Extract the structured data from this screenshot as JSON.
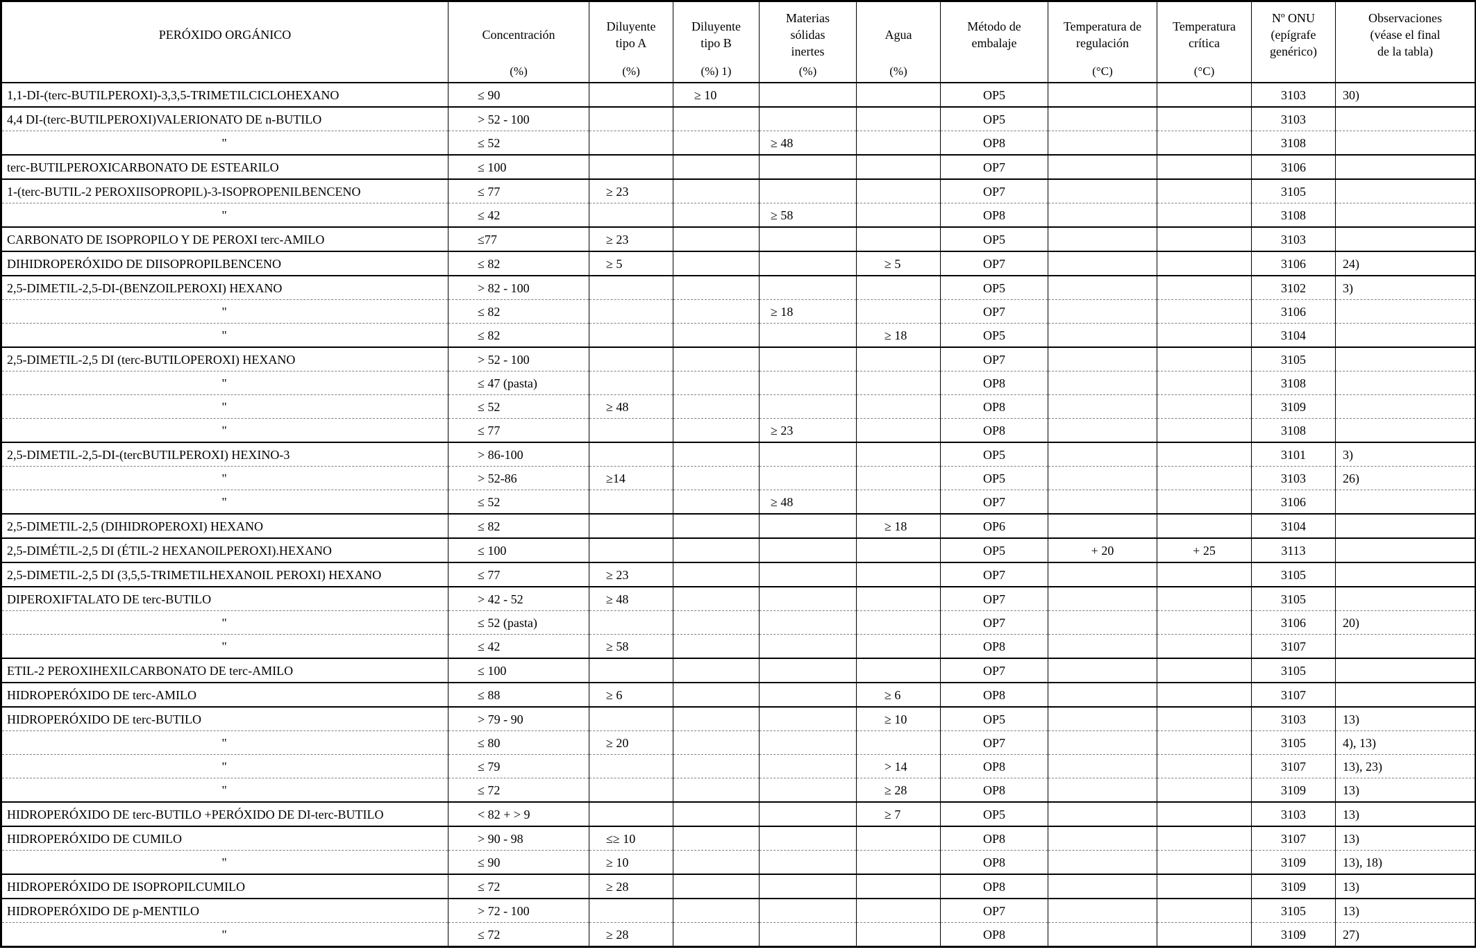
{
  "table": {
    "columns": [
      {
        "key": "name",
        "label": "PERÓXIDO ORGÁNICO",
        "unit": ""
      },
      {
        "key": "conc",
        "label": "Concentración",
        "unit": "(%)"
      },
      {
        "key": "dilA",
        "label": "Diluyente\ntipo A",
        "unit": "(%)"
      },
      {
        "key": "dilB",
        "label": "Diluyente\ntipo B",
        "unit": "(%) 1)"
      },
      {
        "key": "solids",
        "label": "Materias\nsólidas\ninertes",
        "unit": "(%)"
      },
      {
        "key": "agua",
        "label": "Agua",
        "unit": "(%)"
      },
      {
        "key": "metodo",
        "label": "Método de\nembalaje",
        "unit": ""
      },
      {
        "key": "treg",
        "label": "Temperatura de\nregulación",
        "unit": "(°C)"
      },
      {
        "key": "tcrit",
        "label": "Temperatura\ncrítica",
        "unit": "(°C)"
      },
      {
        "key": "onu",
        "label": "Nº ONU\n(epígrafe\ngenérico)",
        "unit": ""
      },
      {
        "key": "obs",
        "label": "Observaciones\n(véase el final\nde la tabla)",
        "unit": ""
      }
    ],
    "rows": [
      {
        "name": "1,1-DI-(terc-BUTILPEROXI)-3,3,5-TRIMETILCICLOHEXANO",
        "conc": "≤ 90",
        "dilA": "",
        "dilB": "≥ 10",
        "solids": "",
        "agua": "",
        "metodo": "OP5",
        "treg": "",
        "tcrit": "",
        "onu": "3103",
        "obs": "30)"
      },
      {
        "name": "4,4 DI-(terc-BUTILPEROXI)VALERIONATO DE n-BUTILO",
        "conc": "> 52 - 100",
        "dilA": "",
        "dilB": "",
        "solids": "",
        "agua": "",
        "metodo": "OP5",
        "treg": "",
        "tcrit": "",
        "onu": "3103",
        "obs": ""
      },
      {
        "name": "\"",
        "conc": "≤ 52",
        "dilA": "",
        "dilB": "",
        "solids": "≥ 48",
        "agua": "",
        "metodo": "OP8",
        "treg": "",
        "tcrit": "",
        "onu": "3108",
        "obs": ""
      },
      {
        "name": "terc-BUTILPEROXICARBONATO DE ESTEARILO",
        "conc": "≤ 100",
        "dilA": "",
        "dilB": "",
        "solids": "",
        "agua": "",
        "metodo": "OP7",
        "treg": "",
        "tcrit": "",
        "onu": "3106",
        "obs": ""
      },
      {
        "name": "1-(terc-BUTIL-2 PEROXIISOPROPIL)-3-ISOPROPENILBENCENO",
        "conc": "≤ 77",
        "dilA": "≥ 23",
        "dilB": "",
        "solids": "",
        "agua": "",
        "metodo": "OP7",
        "treg": "",
        "tcrit": "",
        "onu": "3105",
        "obs": ""
      },
      {
        "name": "\"",
        "conc": "≤ 42",
        "dilA": "",
        "dilB": "",
        "solids": "≥ 58",
        "agua": "",
        "metodo": "OP8",
        "treg": "",
        "tcrit": "",
        "onu": "3108",
        "obs": ""
      },
      {
        "name": "CARBONATO DE ISOPROPILO Y DE PEROXI terc-AMILO",
        "conc": "≤77",
        "dilA": "≥ 23",
        "dilB": "",
        "solids": "",
        "agua": "",
        "metodo": "OP5",
        "treg": "",
        "tcrit": "",
        "onu": "3103",
        "obs": ""
      },
      {
        "name": "DIHIDROPERÓXIDO DE DIISOPROPILBENCENO",
        "conc": "≤ 82",
        "dilA": "≥ 5",
        "dilB": "",
        "solids": "",
        "agua": "≥ 5",
        "metodo": "OP7",
        "treg": "",
        "tcrit": "",
        "onu": "3106",
        "obs": "24)"
      },
      {
        "name": "2,5-DIMETIL-2,5-DI-(BENZOILPEROXI) HEXANO",
        "conc": "> 82 - 100",
        "dilA": "",
        "dilB": "",
        "solids": "",
        "agua": "",
        "metodo": "OP5",
        "treg": "",
        "tcrit": "",
        "onu": "3102",
        "obs": "3)"
      },
      {
        "name": "\"",
        "conc": "≤ 82",
        "dilA": "",
        "dilB": "",
        "solids": "≥ 18",
        "agua": "",
        "metodo": "OP7",
        "treg": "",
        "tcrit": "",
        "onu": "3106",
        "obs": ""
      },
      {
        "name": "\"",
        "conc": "≤ 82",
        "dilA": "",
        "dilB": "",
        "solids": "",
        "agua": "≥ 18",
        "metodo": "OP5",
        "treg": "",
        "tcrit": "",
        "onu": "3104",
        "obs": ""
      },
      {
        "name": "2,5-DIMETIL-2,5 DI (terc-BUTILOPEROXI) HEXANO",
        "conc": "> 52 - 100",
        "dilA": "",
        "dilB": "",
        "solids": "",
        "agua": "",
        "metodo": "OP7",
        "treg": "",
        "tcrit": "",
        "onu": "3105",
        "obs": ""
      },
      {
        "name": "\"",
        "conc": "≤ 47 (pasta)",
        "dilA": "",
        "dilB": "",
        "solids": "",
        "agua": "",
        "metodo": "OP8",
        "treg": "",
        "tcrit": "",
        "onu": "3108",
        "obs": ""
      },
      {
        "name": "\"",
        "conc": "≤ 52",
        "dilA": "≥ 48",
        "dilB": "",
        "solids": "",
        "agua": "",
        "metodo": "OP8",
        "treg": "",
        "tcrit": "",
        "onu": "3109",
        "obs": ""
      },
      {
        "name": "\"",
        "conc": "≤ 77",
        "dilA": "",
        "dilB": "",
        "solids": "≥ 23",
        "agua": "",
        "metodo": "OP8",
        "treg": "",
        "tcrit": "",
        "onu": "3108",
        "obs": ""
      },
      {
        "name": "2,5-DIMETIL-2,5-DI-(tercBUTILPEROXI) HEXINO-3",
        "conc": "> 86-100",
        "dilA": "",
        "dilB": "",
        "solids": "",
        "agua": "",
        "metodo": "OP5",
        "treg": "",
        "tcrit": "",
        "onu": "3101",
        "obs": "3)"
      },
      {
        "name": "\"",
        "conc": "> 52-86",
        "dilA": "≥14",
        "dilB": "",
        "solids": "",
        "agua": "",
        "metodo": "OP5",
        "treg": "",
        "tcrit": "",
        "onu": "3103",
        "obs": "26)"
      },
      {
        "name": "\"",
        "conc": "≤ 52",
        "dilA": "",
        "dilB": "",
        "solids": "≥ 48",
        "agua": "",
        "metodo": "OP7",
        "treg": "",
        "tcrit": "",
        "onu": "3106",
        "obs": ""
      },
      {
        "name": "2,5-DIMETIL-2,5 (DIHIDROPEROXI) HEXANO",
        "conc": "≤ 82",
        "dilA": "",
        "dilB": "",
        "solids": "",
        "agua": "≥ 18",
        "metodo": "OP6",
        "treg": "",
        "tcrit": "",
        "onu": "3104",
        "obs": ""
      },
      {
        "name": "2,5-DIMÉTIL-2,5 DI (ÉTIL-2 HEXANOILPEROXI).HEXANO",
        "conc": "≤ 100",
        "dilA": "",
        "dilB": "",
        "solids": "",
        "agua": "",
        "metodo": "OP5",
        "treg": "+ 20",
        "tcrit": "+ 25",
        "onu": "3113",
        "obs": ""
      },
      {
        "name": "2,5-DIMETIL-2,5 DI (3,5,5-TRIMETILHEXANOIL PEROXI) HEXANO",
        "conc": "≤ 77",
        "dilA": "≥ 23",
        "dilB": "",
        "solids": "",
        "agua": "",
        "metodo": "OP7",
        "treg": "",
        "tcrit": "",
        "onu": "3105",
        "obs": ""
      },
      {
        "name": "DIPEROXIFTALATO DE terc-BUTILO",
        "conc": "> 42 - 52",
        "dilA": "≥ 48",
        "dilB": "",
        "solids": "",
        "agua": "",
        "metodo": "OP7",
        "treg": "",
        "tcrit": "",
        "onu": "3105",
        "obs": ""
      },
      {
        "name": "\"",
        "conc": "≤ 52 (pasta)",
        "dilA": "",
        "dilB": "",
        "solids": "",
        "agua": "",
        "metodo": "OP7",
        "treg": "",
        "tcrit": "",
        "onu": "3106",
        "obs": "20)"
      },
      {
        "name": "\"",
        "conc": "≤ 42",
        "dilA": "≥ 58",
        "dilB": "",
        "solids": "",
        "agua": "",
        "metodo": "OP8",
        "treg": "",
        "tcrit": "",
        "onu": "3107",
        "obs": ""
      },
      {
        "name": "ETIL-2 PEROXIHEXILCARBONATO DE terc-AMILO",
        "conc": "≤ 100",
        "dilA": "",
        "dilB": "",
        "solids": "",
        "agua": "",
        "metodo": "OP7",
        "treg": "",
        "tcrit": "",
        "onu": "3105",
        "obs": ""
      },
      {
        "name": "HIDROPERÓXIDO DE terc-AMILO",
        "conc": "≤ 88",
        "dilA": "≥ 6",
        "dilB": "",
        "solids": "",
        "agua": "≥ 6",
        "metodo": "OP8",
        "treg": "",
        "tcrit": "",
        "onu": "3107",
        "obs": ""
      },
      {
        "name": "HIDROPERÓXIDO DE terc-BUTILO",
        "conc": "> 79 - 90",
        "dilA": "",
        "dilB": "",
        "solids": "",
        "agua": "≥ 10",
        "metodo": "OP5",
        "treg": "",
        "tcrit": "",
        "onu": "3103",
        "obs": "13)"
      },
      {
        "name": "\"",
        "conc": "≤ 80",
        "dilA": "≥ 20",
        "dilB": "",
        "solids": "",
        "agua": "",
        "metodo": "OP7",
        "treg": "",
        "tcrit": "",
        "onu": "3105",
        "obs": "4), 13)"
      },
      {
        "name": "\"",
        "conc": "≤ 79",
        "dilA": "",
        "dilB": "",
        "solids": "",
        "agua": "> 14",
        "metodo": "OP8",
        "treg": "",
        "tcrit": "",
        "onu": "3107",
        "obs": "13), 23)"
      },
      {
        "name": "\"",
        "conc": "≤ 72",
        "dilA": "",
        "dilB": "",
        "solids": "",
        "agua": "≥ 28",
        "metodo": "OP8",
        "treg": "",
        "tcrit": "",
        "onu": "3109",
        "obs": "13)"
      },
      {
        "name": "HIDROPERÓXIDO DE terc-BUTILO +PERÓXIDO DE DI-terc-BUTILO",
        "conc": "< 82 + > 9",
        "dilA": "",
        "dilB": "",
        "solids": "",
        "agua": "≥ 7",
        "metodo": "OP5",
        "treg": "",
        "tcrit": "",
        "onu": "3103",
        "obs": "13)"
      },
      {
        "name": "HIDROPERÓXIDO DE CUMILO",
        "conc": "> 90 - 98",
        "dilA": "≤≥ 10",
        "dilB": "",
        "solids": "",
        "agua": "",
        "metodo": "OP8",
        "treg": "",
        "tcrit": "",
        "onu": "3107",
        "obs": "13)"
      },
      {
        "name": "\"",
        "conc": "≤ 90",
        "dilA": "≥ 10",
        "dilB": "",
        "solids": "",
        "agua": "",
        "metodo": "OP8",
        "treg": "",
        "tcrit": "",
        "onu": "3109",
        "obs": "13), 18)"
      },
      {
        "name": "HIDROPERÓXIDO DE ISOPROPILCUMILO",
        "conc": "≤ 72",
        "dilA": "≥ 28",
        "dilB": "",
        "solids": "",
        "agua": "",
        "metodo": "OP8",
        "treg": "",
        "tcrit": "",
        "onu": "3109",
        "obs": "13)"
      },
      {
        "name": "HIDROPERÓXIDO DE p-MENTILO",
        "conc": "> 72 - 100",
        "dilA": "",
        "dilB": "",
        "solids": "",
        "agua": "",
        "metodo": "OP7",
        "treg": "",
        "tcrit": "",
        "onu": "3105",
        "obs": "13)"
      },
      {
        "name": "\"",
        "conc": "≤ 72",
        "dilA": "≥ 28",
        "dilB": "",
        "solids": "",
        "agua": "",
        "metodo": "OP8",
        "treg": "",
        "tcrit": "",
        "onu": "3109",
        "obs": "27)"
      }
    ]
  }
}
